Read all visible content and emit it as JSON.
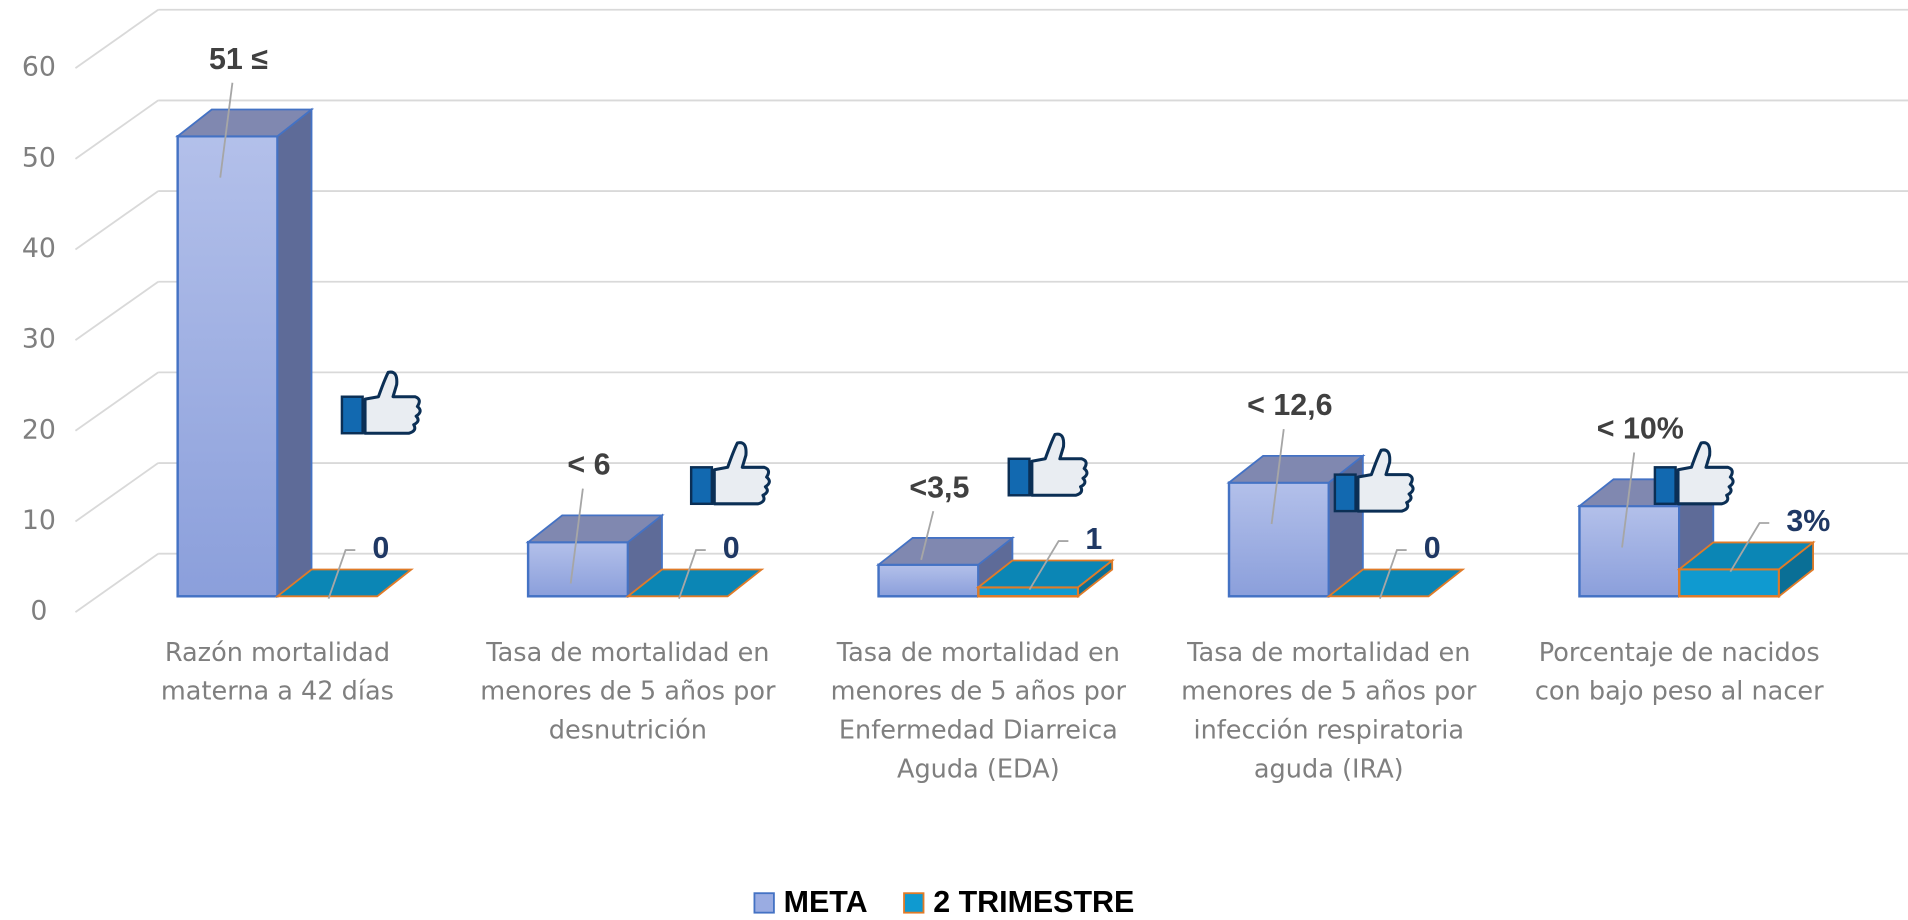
{
  "chart_data": {
    "type": "bar3d",
    "categories": [
      "Razón mortalidad materna a 42 días",
      "Tasa de mortalidad en menores de 5 años por desnutrición",
      "Tasa de mortalidad en menores de 5 años por Enfermedad Diarreica Aguda (EDA)",
      "Tasa de mortalidad en menores de 5 años por infección respiratoria aguda (IRA)",
      "Porcentaje de nacidos con bajo peso al nacer"
    ],
    "series": [
      {
        "name": "META",
        "color": "#9aace2",
        "values": [
          51,
          6,
          3.5,
          12.6,
          10
        ],
        "value_labels": [
          "51 ≤",
          "< 6",
          "<3,5",
          "< 12,6",
          "< 10%"
        ]
      },
      {
        "name": "2 TRIMESTRE",
        "color": "#0f9ad0",
        "values": [
          0,
          0,
          1,
          0,
          3
        ],
        "value_labels": [
          "0",
          "0",
          "1",
          "0",
          "3%"
        ]
      }
    ],
    "ylim": [
      0,
      60
    ],
    "yticks": [
      0,
      10,
      20,
      30,
      40,
      50,
      60
    ],
    "grid": true,
    "legend": "bottom"
  }
}
